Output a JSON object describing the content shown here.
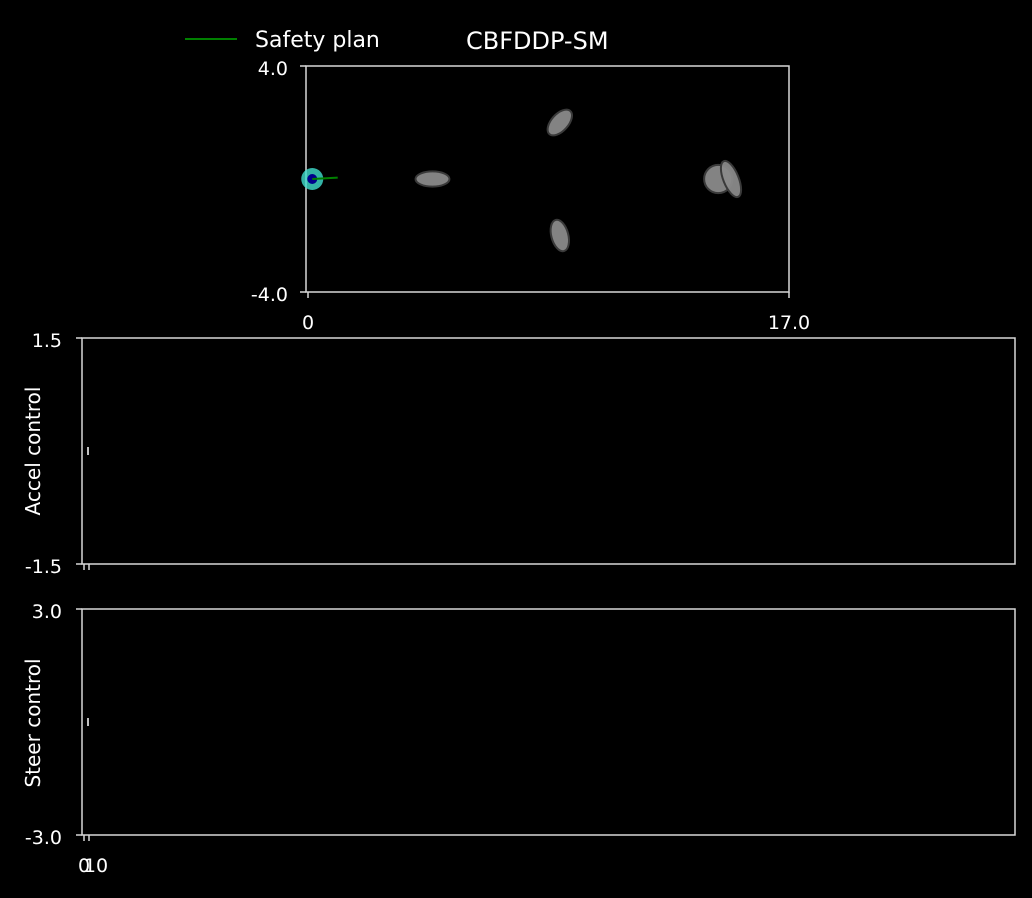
{
  "legend": {
    "label": "Safety plan",
    "color": "#008000"
  },
  "title": "CBFDDP-SM",
  "chart_data": [
    {
      "type": "scatter",
      "name": "map",
      "title": "CBFDDP-SM",
      "xlim": [
        0,
        17.0
      ],
      "ylim": [
        -4.0,
        4.0
      ],
      "x_ticks": [
        "0",
        "17.0"
      ],
      "y_ticks": [
        "4.0",
        "-4.0"
      ],
      "xlabel": "",
      "ylabel": "",
      "grid": false,
      "legend_position": "top-left",
      "vehicle": {
        "x": 0.15,
        "y": 0.0,
        "color": "#00008b",
        "halo_color": "#40e0d0"
      },
      "safety_plan": {
        "x": [
          0.15,
          1.05
        ],
        "y": [
          0.0,
          0.05
        ],
        "color": "#008000"
      },
      "obstacles": [
        {
          "x": 4.4,
          "y": 0.0,
          "rx": 0.6,
          "ry": 0.27,
          "angle": 0
        },
        {
          "x": 8.9,
          "y": 2.0,
          "rx": 0.55,
          "ry": 0.3,
          "angle": -48
        },
        {
          "x": 8.9,
          "y": -2.0,
          "rx": 0.57,
          "ry": 0.3,
          "angle": 75
        },
        {
          "x": 14.5,
          "y": 0.0,
          "rx": 0.5,
          "ry": 0.5,
          "angle": 0
        },
        {
          "x": 14.95,
          "y": 0.0,
          "rx": 0.68,
          "ry": 0.27,
          "angle": 68
        }
      ],
      "obstacle_color": "#8a8a8a"
    },
    {
      "type": "line",
      "name": "accel",
      "ylabel": "Accel control",
      "ylim": [
        -1.5,
        1.5
      ],
      "y_ticks": [
        "1.5",
        "-1.5"
      ],
      "x": [
        0.0
      ],
      "values": [
        0.0
      ],
      "grid": false
    },
    {
      "type": "line",
      "name": "steer",
      "ylabel": "Steer control",
      "ylim": [
        -3.0,
        3.0
      ],
      "y_ticks": [
        "3.0",
        "-3.0"
      ],
      "x_ticks": [
        "0",
        "10"
      ],
      "x": [
        0.0
      ],
      "values": [
        0.0
      ],
      "grid": false
    }
  ]
}
